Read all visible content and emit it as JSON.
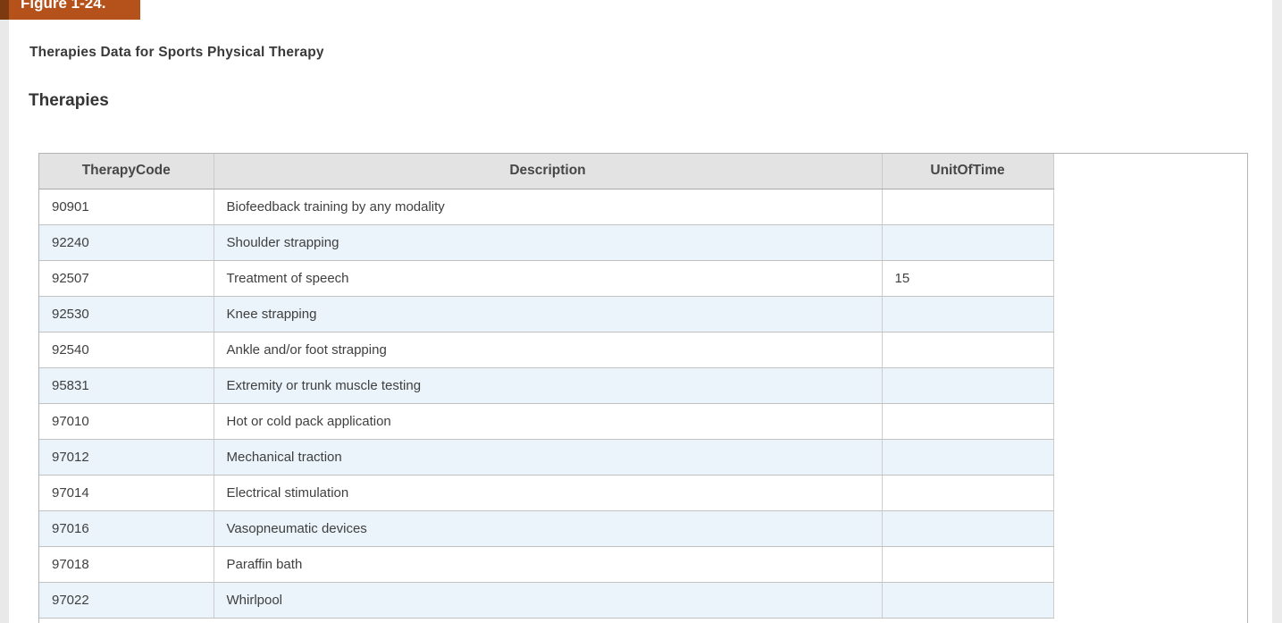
{
  "page": {
    "figure_label": "Figure 1-24.",
    "title": "Therapies Data for Sports Physical Therapy",
    "section_heading": "Therapies"
  },
  "colors": {
    "badge_background": "#b5521b",
    "badge_accent": "#7d3a10",
    "header_row_background": "#e3e3e3",
    "stripe_row_background": "#ebf4fb",
    "table_border": "#c2c2c2",
    "body_text": "#3f3f3f",
    "gutter_strip": "#e9e9e9"
  },
  "table": {
    "columns": [
      "TherapyCode",
      "Description",
      "UnitOfTime"
    ],
    "rows": [
      {
        "therapy_code": "90901",
        "description": "Biofeedback training by any modality",
        "unit_of_time": ""
      },
      {
        "therapy_code": "92240",
        "description": "Shoulder strapping",
        "unit_of_time": ""
      },
      {
        "therapy_code": "92507",
        "description": "Treatment of speech",
        "unit_of_time": "15"
      },
      {
        "therapy_code": "92530",
        "description": "Knee strapping",
        "unit_of_time": ""
      },
      {
        "therapy_code": "92540",
        "description": "Ankle and/or foot strapping",
        "unit_of_time": ""
      },
      {
        "therapy_code": "95831",
        "description": "Extremity or trunk muscle testing",
        "unit_of_time": ""
      },
      {
        "therapy_code": "97010",
        "description": "Hot or cold pack application",
        "unit_of_time": ""
      },
      {
        "therapy_code": "97012",
        "description": "Mechanical traction",
        "unit_of_time": ""
      },
      {
        "therapy_code": "97014",
        "description": "Electrical stimulation",
        "unit_of_time": ""
      },
      {
        "therapy_code": "97016",
        "description": "Vasopneumatic devices",
        "unit_of_time": ""
      },
      {
        "therapy_code": "97018",
        "description": "Paraffin bath",
        "unit_of_time": ""
      },
      {
        "therapy_code": "97022",
        "description": "Whirlpool",
        "unit_of_time": ""
      }
    ]
  }
}
